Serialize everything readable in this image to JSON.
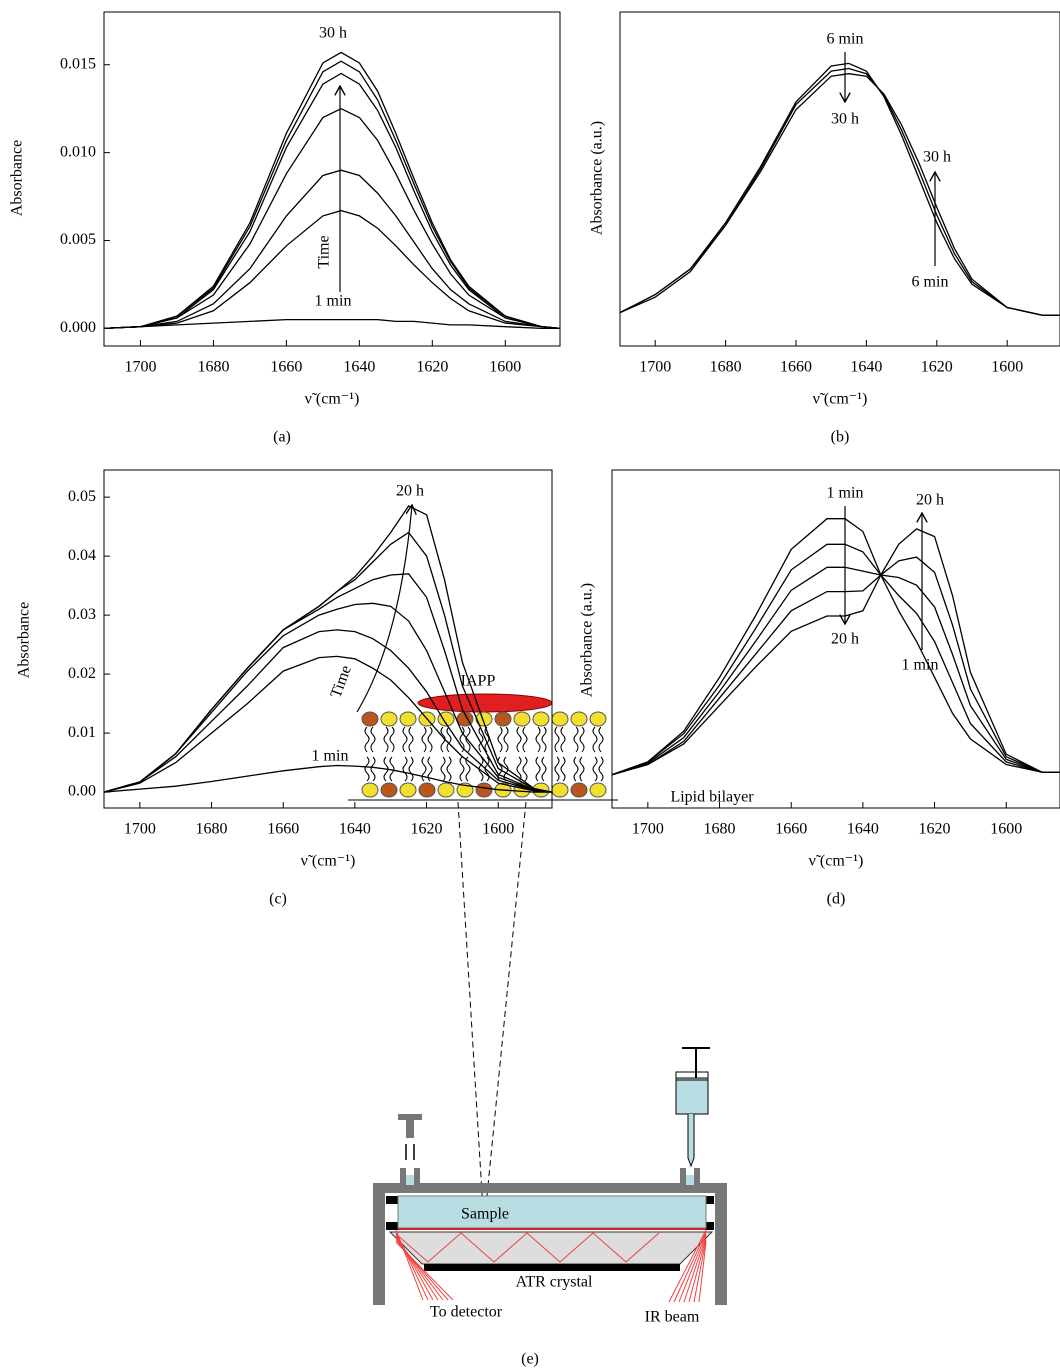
{
  "chart_data": [
    {
      "type": "line",
      "caption": "(a)",
      "x_label": "ν̃ (cm⁻¹)",
      "y_label": "Absorbance",
      "x": [
        1710,
        1700,
        1690,
        1680,
        1670,
        1660,
        1650,
        1645,
        1640,
        1635,
        1630,
        1625,
        1620,
        1615,
        1610,
        1600,
        1590,
        1585
      ],
      "xlim": [
        1710,
        1585
      ],
      "xticks": [
        1700,
        1680,
        1660,
        1640,
        1620,
        1600
      ],
      "ylim": [
        -0.001,
        0.018
      ],
      "yticks": [
        {
          "value": 0,
          "label": "0.000"
        },
        0.005,
        {
          "value": 0.01,
          "label": "0.010"
        },
        0.015
      ],
      "series": [
        {
          "color": "#000000",
          "values": [
            0,
            0.0001,
            0.0002,
            0.0003,
            0.0004,
            0.0005,
            0.0005,
            0.0005,
            0.0005,
            0.0005,
            0.0004,
            0.0004,
            0.0003,
            0.0002,
            0.0002,
            0.0001,
            0,
            0
          ]
        },
        {
          "color": "#000000",
          "values": [
            0,
            0.0001,
            0.0003,
            0.001,
            0.0026,
            0.0047,
            0.0064,
            0.0067,
            0.0064,
            0.0057,
            0.0047,
            0.0036,
            0.0026,
            0.0017,
            0.001,
            0.0003,
            0.0001,
            0
          ]
        },
        {
          "color": "#000000",
          "values": [
            0,
            0.0001,
            0.0004,
            0.0014,
            0.0034,
            0.0064,
            0.0087,
            0.009,
            0.0087,
            0.0077,
            0.0064,
            0.0049,
            0.0034,
            0.0022,
            0.0014,
            0.0004,
            0.0001,
            0
          ]
        },
        {
          "color": "#000000",
          "values": [
            0,
            0.0001,
            0.0006,
            0.0019,
            0.0048,
            0.0088,
            0.012,
            0.0125,
            0.012,
            0.0107,
            0.0088,
            0.0067,
            0.0048,
            0.0031,
            0.0019,
            0.0006,
            0.0001,
            0
          ]
        },
        {
          "color": "#000000",
          "values": [
            0,
            0.0001,
            0.0006,
            0.0022,
            0.0055,
            0.0103,
            0.0139,
            0.0145,
            0.0139,
            0.0124,
            0.0103,
            0.0078,
            0.0055,
            0.0036,
            0.0022,
            0.0006,
            0.0001,
            0
          ]
        },
        {
          "color": "#000000",
          "values": [
            0,
            0.0001,
            0.0007,
            0.0023,
            0.0058,
            0.0107,
            0.0146,
            0.0152,
            0.0146,
            0.013,
            0.0107,
            0.0082,
            0.0058,
            0.0038,
            0.0023,
            0.0007,
            0.0001,
            0
          ]
        },
        {
          "color": "#000000",
          "values": [
            0,
            0.0001,
            0.0007,
            0.0024,
            0.006,
            0.0111,
            0.0151,
            0.0157,
            0.0151,
            0.0135,
            0.0111,
            0.0085,
            0.006,
            0.0039,
            0.0024,
            0.0007,
            0.0001,
            0
          ]
        }
      ],
      "annotations": [
        "30 h",
        "Time",
        "1 min"
      ]
    },
    {
      "type": "line",
      "caption": "(b)",
      "x_label": "ν̃ (cm⁻¹)",
      "y_label": "Absorbance (a.u.)",
      "x": [
        1710,
        1700,
        1690,
        1680,
        1670,
        1660,
        1650,
        1645,
        1640,
        1635,
        1630,
        1625,
        1620,
        1615,
        1610,
        1600,
        1590,
        1585
      ],
      "xlim": [
        1710,
        1585
      ],
      "xticks": [
        1700,
        1680,
        1660,
        1640,
        1620,
        1600
      ],
      "ylim": [
        -0.1,
        1.2
      ],
      "series": [
        {
          "color": "#000000",
          "values": [
            0.03,
            0.1,
            0.2,
            0.38,
            0.6,
            0.85,
            0.99,
            1.0,
            0.97,
            0.87,
            0.72,
            0.55,
            0.38,
            0.24,
            0.14,
            0.05,
            0.02,
            0.02
          ]
        },
        {
          "color": "#000000",
          "values": [
            0.03,
            0.1,
            0.2,
            0.37,
            0.59,
            0.84,
            0.97,
            0.98,
            0.96,
            0.875,
            0.74,
            0.58,
            0.41,
            0.26,
            0.15,
            0.05,
            0.02,
            0.02
          ]
        },
        {
          "color": "#000000",
          "values": [
            0.03,
            0.09,
            0.19,
            0.37,
            0.58,
            0.82,
            0.95,
            0.96,
            0.95,
            0.88,
            0.76,
            0.61,
            0.44,
            0.28,
            0.16,
            0.05,
            0.02,
            0.02
          ]
        }
      ],
      "annotations": [
        "6 min",
        "30 h",
        "30 h",
        "6 min"
      ]
    },
    {
      "type": "line",
      "caption": "(c)",
      "x_label": "ν̃ (cm⁻¹)",
      "y_label": "Absorbance",
      "x": [
        1710,
        1700,
        1690,
        1680,
        1670,
        1660,
        1650,
        1645,
        1640,
        1635,
        1630,
        1625,
        1620,
        1615,
        1610,
        1600,
        1590,
        1585
      ],
      "xlim": [
        1710,
        1585
      ],
      "xticks": [
        1700,
        1680,
        1660,
        1640,
        1620,
        1600
      ],
      "ylim": [
        -0.0027,
        0.0546
      ],
      "yticks": [
        {
          "value": 0,
          "label": "0.00"
        },
        0.01,
        0.02,
        0.03,
        0.04,
        0.05
      ],
      "series": [
        {
          "color": "#000000",
          "values": [
            0,
            0.0005,
            0.001,
            0.0018,
            0.0027,
            0.0036,
            0.0043,
            0.0045,
            0.0044,
            0.0042,
            0.0038,
            0.0032,
            0.0025,
            0.0018,
            0.0012,
            0.0004,
            0,
            0
          ]
        },
        {
          "color": "#000000",
          "values": [
            0,
            0.0015,
            0.005,
            0.01,
            0.015,
            0.0205,
            0.0228,
            0.023,
            0.0226,
            0.021,
            0.019,
            0.016,
            0.0125,
            0.009,
            0.006,
            0.0015,
            0.0002,
            0
          ]
        },
        {
          "color": "#000000",
          "values": [
            0,
            0.0017,
            0.006,
            0.012,
            0.018,
            0.0245,
            0.0272,
            0.0275,
            0.0272,
            0.026,
            0.024,
            0.021,
            0.017,
            0.012,
            0.0075,
            0.002,
            0.0003,
            0
          ]
        },
        {
          "color": "#000000",
          "values": [
            0,
            0.0017,
            0.0065,
            0.0135,
            0.0205,
            0.0265,
            0.03,
            0.031,
            0.0318,
            0.032,
            0.0315,
            0.029,
            0.024,
            0.017,
            0.01,
            0.0025,
            0.0003,
            0
          ]
        },
        {
          "color": "#000000",
          "values": [
            0,
            0.0017,
            0.0065,
            0.014,
            0.021,
            0.0275,
            0.031,
            0.033,
            0.0345,
            0.036,
            0.0368,
            0.037,
            0.033,
            0.024,
            0.014,
            0.003,
            0.0004,
            0
          ]
        },
        {
          "color": "#000000",
          "values": [
            0,
            0.0017,
            0.0065,
            0.014,
            0.021,
            0.0275,
            0.0315,
            0.034,
            0.036,
            0.039,
            0.042,
            0.044,
            0.04,
            0.03,
            0.018,
            0.004,
            0.0005,
            0
          ]
        },
        {
          "color": "#000000",
          "values": [
            0,
            0.0017,
            0.0065,
            0.014,
            0.021,
            0.0275,
            0.0315,
            0.034,
            0.0365,
            0.04,
            0.044,
            0.0485,
            0.047,
            0.036,
            0.022,
            0.005,
            0.0006,
            0
          ]
        }
      ],
      "annotations": [
        "20 h",
        "Time",
        "1 min"
      ]
    },
    {
      "type": "line",
      "caption": "(d)",
      "x_label": "ν̃ (cm⁻¹)",
      "y_label": "Absorbance (a.u.)",
      "x": [
        1710,
        1700,
        1690,
        1680,
        1670,
        1660,
        1650,
        1645,
        1640,
        1635,
        1630,
        1625,
        1620,
        1615,
        1610,
        1600,
        1590,
        1585
      ],
      "xlim": [
        1710,
        1585
      ],
      "xticks": [
        1700,
        1680,
        1660,
        1640,
        1620,
        1600
      ],
      "ylim": [
        -0.13,
        1.19
      ],
      "series": [
        {
          "color": "#000000",
          "values": [
            0,
            0.05,
            0.17,
            0.38,
            0.62,
            0.88,
            1.0,
            1.0,
            0.95,
            0.78,
            0.64,
            0.52,
            0.38,
            0.24,
            0.14,
            0.04,
            0.01,
            0.01
          ]
        },
        {
          "color": "#000000",
          "values": [
            0,
            0.05,
            0.16,
            0.35,
            0.57,
            0.8,
            0.9,
            0.9,
            0.87,
            0.78,
            0.7,
            0.63,
            0.52,
            0.36,
            0.2,
            0.05,
            0.01,
            0.01
          ]
        },
        {
          "color": "#000000",
          "values": [
            0,
            0.045,
            0.145,
            0.325,
            0.52,
            0.72,
            0.81,
            0.81,
            0.795,
            0.78,
            0.77,
            0.74,
            0.655,
            0.47,
            0.27,
            0.06,
            0.01,
            0.01
          ]
        },
        {
          "color": "#000000",
          "values": [
            0,
            0.04,
            0.13,
            0.3,
            0.47,
            0.64,
            0.715,
            0.715,
            0.718,
            0.78,
            0.835,
            0.85,
            0.79,
            0.585,
            0.335,
            0.07,
            0.01,
            0.01
          ]
        },
        {
          "color": "#000000",
          "values": [
            0,
            0.04,
            0.12,
            0.27,
            0.42,
            0.56,
            0.62,
            0.62,
            0.64,
            0.78,
            0.9,
            0.96,
            0.93,
            0.7,
            0.4,
            0.08,
            0.01,
            0.01
          ]
        }
      ],
      "annotations": [
        "1 min",
        "20 h",
        "20 h",
        "1 min"
      ]
    }
  ],
  "diagram": {
    "caption": "(e)",
    "labels": {
      "iapp": "IAPP",
      "lipid_bilayer": "Lipid bilayer",
      "sample": "Sample",
      "atr_crystal": "ATR crystal",
      "to_detector": "To detector",
      "ir_beam": "IR beam"
    }
  }
}
